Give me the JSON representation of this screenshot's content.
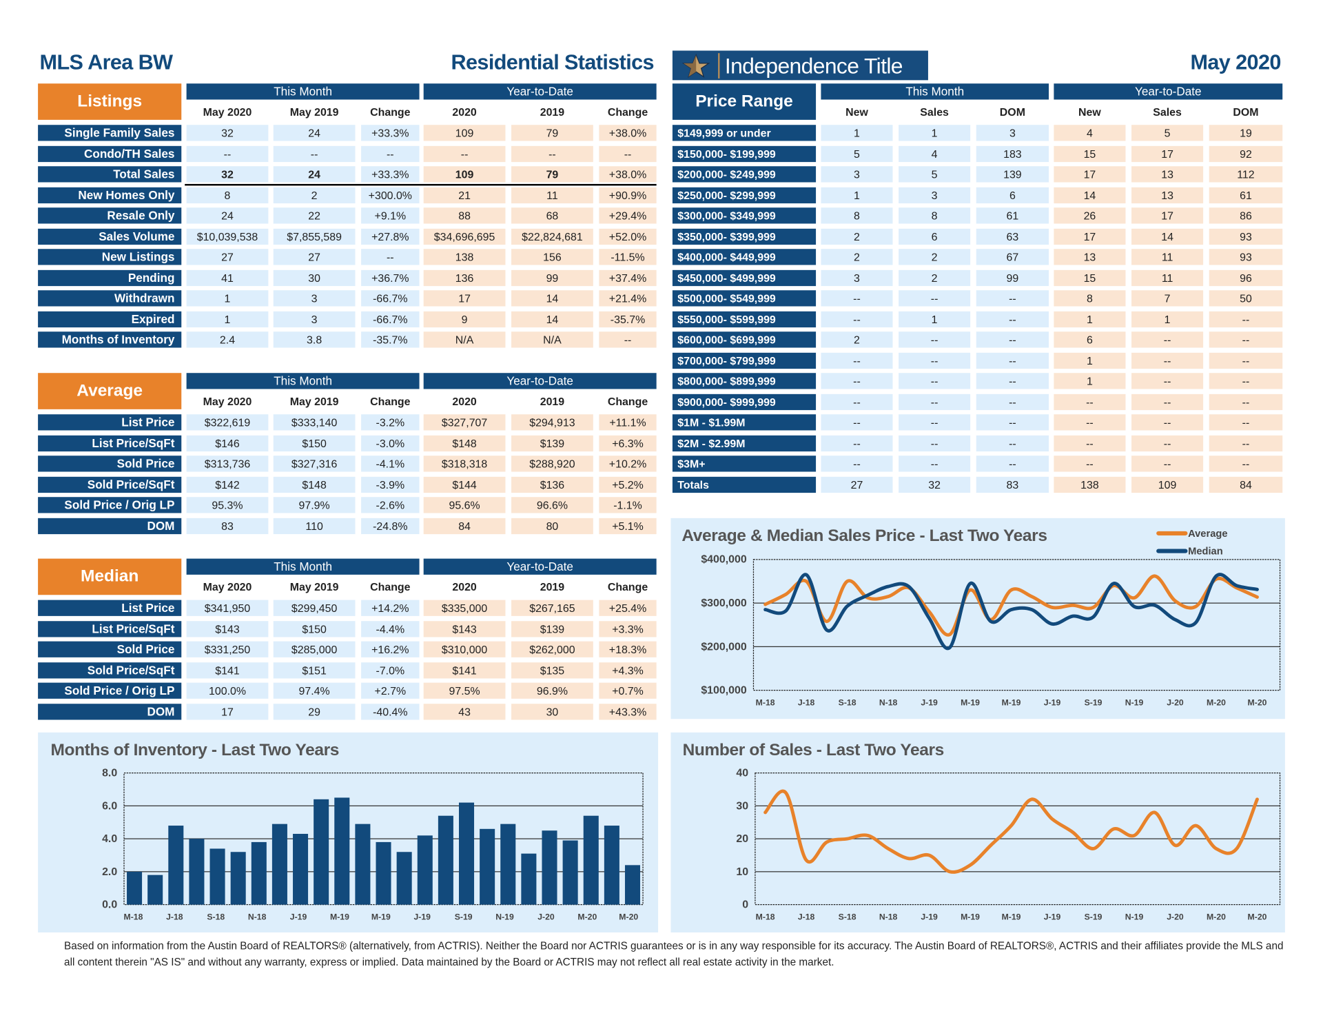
{
  "header": {
    "area": "MLS Area BW",
    "title": "Residential Statistics",
    "logo_text": "Independence Title",
    "period": "May 2020"
  },
  "colors": {
    "navy": "#124a7c",
    "orange": "#e8822a",
    "this_month_cell": "#ddeefc",
    "ytd_cell": "#fbe5d2",
    "chart_bg": "#ddeefb"
  },
  "listings": {
    "section": "Listings",
    "group_this_month": "This Month",
    "group_ytd": "Year-to-Date",
    "columns": [
      "May 2020",
      "May 2019",
      "Change",
      "2020",
      "2019",
      "Change"
    ],
    "rows": [
      {
        "label": "Single Family Sales",
        "values": [
          "32",
          "24",
          "+33.3%",
          "109",
          "79",
          "+38.0%"
        ]
      },
      {
        "label": "Condo/TH Sales",
        "values": [
          "--",
          "--",
          "--",
          "--",
          "--",
          "--"
        ]
      },
      {
        "label": "Total Sales",
        "values": [
          "32",
          "24",
          "+33.3%",
          "109",
          "79",
          "+38.0%"
        ],
        "bold": true
      },
      {
        "label": "New Homes Only",
        "values": [
          "8",
          "2",
          "+300.0%",
          "21",
          "11",
          "+90.9%"
        ]
      },
      {
        "label": "Resale Only",
        "values": [
          "24",
          "22",
          "+9.1%",
          "88",
          "68",
          "+29.4%"
        ]
      },
      {
        "label": "Sales Volume",
        "values": [
          "$10,039,538",
          "$7,855,589",
          "+27.8%",
          "$34,696,695",
          "$22,824,681",
          "+52.0%"
        ]
      },
      {
        "label": "New Listings",
        "values": [
          "27",
          "27",
          "--",
          "138",
          "156",
          "-11.5%"
        ]
      },
      {
        "label": "Pending",
        "values": [
          "41",
          "30",
          "+36.7%",
          "136",
          "99",
          "+37.4%"
        ]
      },
      {
        "label": "Withdrawn",
        "values": [
          "1",
          "3",
          "-66.7%",
          "17",
          "14",
          "+21.4%"
        ]
      },
      {
        "label": "Expired",
        "values": [
          "1",
          "3",
          "-66.7%",
          "9",
          "14",
          "-35.7%"
        ]
      },
      {
        "label": "Months of Inventory",
        "values": [
          "2.4",
          "3.8",
          "-35.7%",
          "N/A",
          "N/A",
          "--"
        ]
      }
    ]
  },
  "average": {
    "section": "Average",
    "group_this_month": "This Month",
    "group_ytd": "Year-to-Date",
    "columns": [
      "May 2020",
      "May 2019",
      "Change",
      "2020",
      "2019",
      "Change"
    ],
    "rows": [
      {
        "label": "List Price",
        "values": [
          "$322,619",
          "$333,140",
          "-3.2%",
          "$327,707",
          "$294,913",
          "+11.1%"
        ]
      },
      {
        "label": "List Price/SqFt",
        "values": [
          "$146",
          "$150",
          "-3.0%",
          "$148",
          "$139",
          "+6.3%"
        ]
      },
      {
        "label": "Sold Price",
        "values": [
          "$313,736",
          "$327,316",
          "-4.1%",
          "$318,318",
          "$288,920",
          "+10.2%"
        ]
      },
      {
        "label": "Sold Price/SqFt",
        "values": [
          "$142",
          "$148",
          "-3.9%",
          "$144",
          "$136",
          "+5.2%"
        ]
      },
      {
        "label": "Sold Price / Orig LP",
        "values": [
          "95.3%",
          "97.9%",
          "-2.6%",
          "95.6%",
          "96.6%",
          "-1.1%"
        ]
      },
      {
        "label": "DOM",
        "values": [
          "83",
          "110",
          "-24.8%",
          "84",
          "80",
          "+5.1%"
        ]
      }
    ]
  },
  "median": {
    "section": "Median",
    "group_this_month": "This Month",
    "group_ytd": "Year-to-Date",
    "columns": [
      "May 2020",
      "May 2019",
      "Change",
      "2020",
      "2019",
      "Change"
    ],
    "rows": [
      {
        "label": "List Price",
        "values": [
          "$341,950",
          "$299,450",
          "+14.2%",
          "$335,000",
          "$267,165",
          "+25.4%"
        ]
      },
      {
        "label": "List Price/SqFt",
        "values": [
          "$143",
          "$150",
          "-4.4%",
          "$143",
          "$139",
          "+3.3%"
        ]
      },
      {
        "label": "Sold Price",
        "values": [
          "$331,250",
          "$285,000",
          "+16.2%",
          "$310,000",
          "$262,000",
          "+18.3%"
        ]
      },
      {
        "label": "Sold Price/SqFt",
        "values": [
          "$141",
          "$151",
          "-7.0%",
          "$141",
          "$135",
          "+4.3%"
        ]
      },
      {
        "label": "Sold Price / Orig LP",
        "values": [
          "100.0%",
          "97.4%",
          "+2.7%",
          "97.5%",
          "96.9%",
          "+0.7%"
        ]
      },
      {
        "label": "DOM",
        "values": [
          "17",
          "29",
          "-40.4%",
          "43",
          "30",
          "+43.3%"
        ]
      }
    ]
  },
  "price_range": {
    "section": "Price Range",
    "group_this_month": "This Month",
    "group_ytd": "Year-to-Date",
    "columns": [
      "New",
      "Sales",
      "DOM",
      "New",
      "Sales",
      "DOM"
    ],
    "rows": [
      {
        "label": "$149,999 or under",
        "values": [
          "1",
          "1",
          "3",
          "4",
          "5",
          "19"
        ]
      },
      {
        "label": "$150,000- $199,999",
        "values": [
          "5",
          "4",
          "183",
          "15",
          "17",
          "92"
        ]
      },
      {
        "label": "$200,000- $249,999",
        "values": [
          "3",
          "5",
          "139",
          "17",
          "13",
          "112"
        ]
      },
      {
        "label": "$250,000- $299,999",
        "values": [
          "1",
          "3",
          "6",
          "14",
          "13",
          "61"
        ]
      },
      {
        "label": "$300,000- $349,999",
        "values": [
          "8",
          "8",
          "61",
          "26",
          "17",
          "86"
        ]
      },
      {
        "label": "$350,000- $399,999",
        "values": [
          "2",
          "6",
          "63",
          "17",
          "14",
          "93"
        ]
      },
      {
        "label": "$400,000- $449,999",
        "values": [
          "2",
          "2",
          "67",
          "13",
          "11",
          "93"
        ]
      },
      {
        "label": "$450,000- $499,999",
        "values": [
          "3",
          "2",
          "99",
          "15",
          "11",
          "96"
        ]
      },
      {
        "label": "$500,000- $549,999",
        "values": [
          "--",
          "--",
          "--",
          "8",
          "7",
          "50"
        ]
      },
      {
        "label": "$550,000- $599,999",
        "values": [
          "--",
          "1",
          "--",
          "1",
          "1",
          "--"
        ]
      },
      {
        "label": "$600,000- $699,999",
        "values": [
          "2",
          "--",
          "--",
          "6",
          "--",
          "--"
        ]
      },
      {
        "label": "$700,000- $799,999",
        "values": [
          "--",
          "--",
          "--",
          "1",
          "--",
          "--"
        ]
      },
      {
        "label": "$800,000- $899,999",
        "values": [
          "--",
          "--",
          "--",
          "1",
          "--",
          "--"
        ]
      },
      {
        "label": "$900,000- $999,999",
        "values": [
          "--",
          "--",
          "--",
          "--",
          "--",
          "--"
        ]
      },
      {
        "label": "$1M - $1.99M",
        "values": [
          "--",
          "--",
          "--",
          "--",
          "--",
          "--"
        ]
      },
      {
        "label": "$2M - $2.99M",
        "values": [
          "--",
          "--",
          "--",
          "--",
          "--",
          "--"
        ]
      },
      {
        "label": "$3M+",
        "values": [
          "--",
          "--",
          "--",
          "--",
          "--",
          "--"
        ]
      },
      {
        "label": "Totals",
        "values": [
          "27",
          "32",
          "83",
          "138",
          "109",
          "84"
        ]
      }
    ]
  },
  "chart_data": [
    {
      "id": "price",
      "type": "line",
      "title": "Average & Median Sales Price - Last Two Years",
      "x_tick_labels": [
        "M-18",
        "J-18",
        "S-18",
        "N-18",
        "J-19",
        "M-19",
        "M-19",
        "J-19",
        "S-19",
        "N-19",
        "J-20",
        "M-20",
        "M-20"
      ],
      "y_tick_labels": [
        "$100,000",
        "$200,000",
        "$300,000",
        "$400,000"
      ],
      "ylim": [
        100000,
        400000
      ],
      "grid": true,
      "legend": "top-right",
      "series": [
        {
          "name": "Average",
          "color": "#e8822a",
          "values": [
            297000,
            320000,
            350000,
            258000,
            350000,
            312000,
            315000,
            335000,
            280000,
            228000,
            330000,
            262000,
            330000,
            315000,
            290000,
            295000,
            290000,
            340000,
            312000,
            362000,
            305000,
            292000,
            355000,
            335000,
            313736
          ]
        },
        {
          "name": "Median",
          "color": "#124a7c",
          "values": [
            285000,
            282000,
            365000,
            238000,
            293000,
            318000,
            338000,
            338000,
            265000,
            198000,
            345000,
            258000,
            285000,
            285000,
            252000,
            270000,
            268000,
            345000,
            292000,
            295000,
            262000,
            255000,
            362000,
            340000,
            331250
          ]
        }
      ]
    },
    {
      "id": "inventory",
      "type": "bar",
      "title": "Months of Inventory - Last Two Years",
      "x_tick_labels": [
        "M-18",
        "J-18",
        "S-18",
        "N-18",
        "J-19",
        "M-19",
        "M-19",
        "J-19",
        "S-19",
        "N-19",
        "J-20",
        "M-20",
        "M-20"
      ],
      "y_tick_labels": [
        "0.0",
        "2.0",
        "4.0",
        "6.0",
        "8.0"
      ],
      "ylim": [
        0,
        8
      ],
      "grid": true,
      "color": "#124a7c",
      "values": [
        2.0,
        1.8,
        4.8,
        4.0,
        3.4,
        3.2,
        3.8,
        4.9,
        4.3,
        6.4,
        6.5,
        4.9,
        3.8,
        3.2,
        4.2,
        5.4,
        6.2,
        4.6,
        4.9,
        3.1,
        4.5,
        3.9,
        5.4,
        4.8,
        2.4
      ]
    },
    {
      "id": "sales",
      "type": "line",
      "title": "Number of Sales - Last Two Years",
      "x_tick_labels": [
        "M-18",
        "J-18",
        "S-18",
        "N-18",
        "J-19",
        "M-19",
        "M-19",
        "J-19",
        "S-19",
        "N-19",
        "J-20",
        "M-20",
        "M-20"
      ],
      "y_tick_labels": [
        "0",
        "10",
        "20",
        "30",
        "40"
      ],
      "ylim": [
        0,
        40
      ],
      "grid": true,
      "color": "#e8822a",
      "values": [
        28,
        34,
        13.5,
        19,
        20,
        21,
        17,
        14,
        15,
        10,
        12,
        18,
        24,
        32,
        26,
        22,
        17,
        23,
        21,
        28,
        18,
        24,
        17,
        17,
        32
      ]
    }
  ],
  "footer": "Based on information from the Austin Board of REALTORS® (alternatively, from ACTRIS). Neither the Board nor ACTRIS guarantees or is in any way responsible for its accuracy. The Austin Board of REALTORS®, ACTRIS and their affiliates provide the MLS and all content therein \"AS IS\" and without any warranty, express or implied. Data maintained by the Board or ACTRIS may not reflect all real estate activity in the market."
}
